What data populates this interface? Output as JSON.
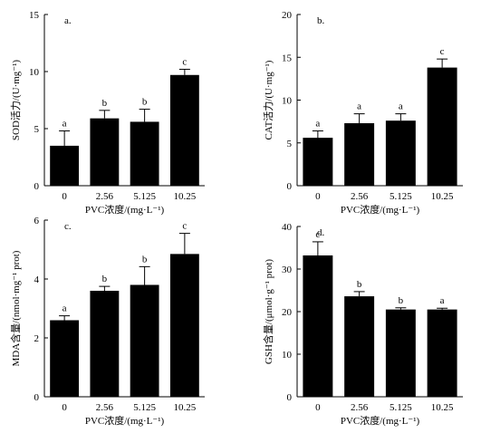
{
  "chart_data": [
    {
      "type": "bar",
      "panel_label": "a.",
      "categories": [
        "0",
        "2.56",
        "5.125",
        "10.25"
      ],
      "values": [
        3.5,
        5.9,
        5.6,
        9.7
      ],
      "errors": [
        1.3,
        0.7,
        1.1,
        0.5
      ],
      "significance": [
        "a",
        "b",
        "b",
        "c"
      ],
      "xlabel": "PVC浓度/(mg·L⁻¹)",
      "ylabel": "SOD活力/(U·mg⁻¹)",
      "ylim": [
        0,
        15
      ],
      "yticks": [
        0,
        5,
        10,
        15
      ],
      "grid": false,
      "bar_color": "#000000"
    },
    {
      "type": "bar",
      "panel_label": "b.",
      "categories": [
        "0",
        "2.56",
        "5.125",
        "10.25"
      ],
      "values": [
        5.6,
        7.3,
        7.6,
        13.8
      ],
      "errors": [
        0.8,
        1.1,
        0.8,
        1.0
      ],
      "significance": [
        "a",
        "a",
        "a",
        "c"
      ],
      "xlabel": "PVC浓度/(mg·L⁻¹)",
      "ylabel": "CAT活力/(U·mg⁻¹)",
      "ylim": [
        0,
        20
      ],
      "yticks": [
        0,
        5,
        10,
        15,
        20
      ],
      "grid": false,
      "bar_color": "#000000"
    },
    {
      "type": "bar",
      "panel_label": "c.",
      "categories": [
        "0",
        "2.56",
        "5.125",
        "10.25"
      ],
      "values": [
        2.6,
        3.6,
        3.8,
        4.85
      ],
      "errors": [
        0.15,
        0.15,
        0.62,
        0.7
      ],
      "significance": [
        "a",
        "b",
        "b",
        "c"
      ],
      "xlabel": "PVC浓度/(mg·L⁻¹)",
      "ylabel": "MDA含量/(nmol·mg⁻¹ prot)",
      "ylim": [
        0,
        6
      ],
      "yticks": [
        0,
        2,
        4,
        6
      ],
      "grid": false,
      "bar_color": "#000000"
    },
    {
      "type": "bar",
      "panel_label": "d.",
      "categories": [
        "0",
        "2.56",
        "5.125",
        "10.25"
      ],
      "values": [
        33.2,
        23.6,
        20.5,
        20.5
      ],
      "errors": [
        3.2,
        1.1,
        0.4,
        0.3
      ],
      "significance": [
        "c",
        "b",
        "b",
        "a"
      ],
      "xlabel": "PVC浓度/(mg·L⁻¹)",
      "ylabel": "GSH含量/(μmol·g⁻¹ prot)",
      "ylim": [
        0,
        40
      ],
      "yticks": [
        0,
        10,
        20,
        30,
        40
      ],
      "grid": false,
      "bar_color": "#000000"
    }
  ]
}
